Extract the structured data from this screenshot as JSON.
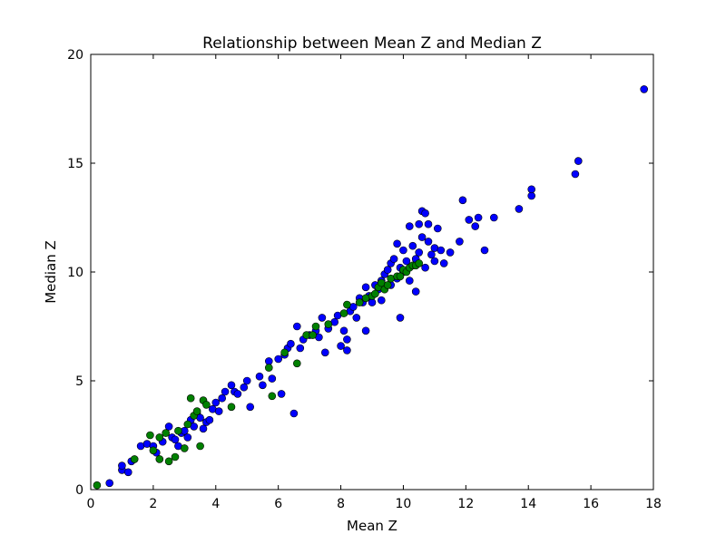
{
  "chart_data": {
    "type": "scatter",
    "title": "Relationship between Mean Z and Median Z",
    "xlabel": "Mean Z",
    "ylabel": "Median Z",
    "xlim": [
      0,
      18
    ],
    "ylim": [
      0,
      20
    ],
    "xticks": [
      0,
      2,
      4,
      6,
      8,
      10,
      12,
      14,
      16,
      18
    ],
    "yticks": [
      0,
      5,
      10,
      15,
      20
    ],
    "grid": false,
    "legend": "none",
    "series": [
      {
        "color": "#0000ff",
        "points": [
          [
            0.6,
            0.3
          ],
          [
            1.0,
            0.9
          ],
          [
            1.0,
            1.1
          ],
          [
            1.2,
            0.8
          ],
          [
            1.3,
            1.3
          ],
          [
            1.6,
            2.0
          ],
          [
            1.8,
            2.1
          ],
          [
            2.0,
            2.0
          ],
          [
            2.1,
            1.7
          ],
          [
            2.3,
            2.2
          ],
          [
            2.5,
            2.9
          ],
          [
            2.6,
            2.4
          ],
          [
            2.7,
            2.3
          ],
          [
            2.8,
            2.0
          ],
          [
            2.9,
            2.6
          ],
          [
            3.0,
            2.7
          ],
          [
            3.1,
            2.4
          ],
          [
            3.2,
            3.2
          ],
          [
            3.3,
            2.9
          ],
          [
            3.4,
            3.5
          ],
          [
            3.5,
            3.3
          ],
          [
            3.6,
            2.8
          ],
          [
            3.7,
            3.1
          ],
          [
            3.8,
            3.2
          ],
          [
            3.9,
            3.7
          ],
          [
            4.0,
            4.0
          ],
          [
            4.1,
            3.6
          ],
          [
            4.2,
            4.2
          ],
          [
            4.3,
            4.5
          ],
          [
            4.5,
            4.8
          ],
          [
            4.6,
            4.5
          ],
          [
            4.7,
            4.4
          ],
          [
            4.9,
            4.7
          ],
          [
            5.0,
            5.0
          ],
          [
            5.1,
            3.8
          ],
          [
            5.4,
            5.2
          ],
          [
            5.5,
            4.8
          ],
          [
            5.7,
            5.9
          ],
          [
            5.8,
            5.1
          ],
          [
            6.0,
            6.0
          ],
          [
            6.1,
            4.4
          ],
          [
            6.2,
            6.2
          ],
          [
            6.3,
            6.5
          ],
          [
            6.4,
            6.7
          ],
          [
            6.5,
            3.5
          ],
          [
            6.6,
            7.5
          ],
          [
            6.7,
            6.5
          ],
          [
            6.8,
            6.9
          ],
          [
            7.0,
            7.1
          ],
          [
            7.2,
            7.3
          ],
          [
            7.3,
            7.0
          ],
          [
            7.4,
            7.9
          ],
          [
            7.5,
            6.3
          ],
          [
            7.6,
            7.4
          ],
          [
            7.8,
            7.7
          ],
          [
            7.9,
            8.0
          ],
          [
            8.0,
            6.6
          ],
          [
            8.1,
            7.3
          ],
          [
            8.2,
            6.9
          ],
          [
            8.2,
            6.4
          ],
          [
            8.3,
            8.2
          ],
          [
            8.4,
            8.4
          ],
          [
            8.5,
            7.9
          ],
          [
            8.6,
            8.8
          ],
          [
            8.7,
            8.6
          ],
          [
            8.8,
            7.3
          ],
          [
            8.8,
            9.3
          ],
          [
            8.9,
            8.9
          ],
          [
            9.0,
            8.6
          ],
          [
            9.1,
            9.4
          ],
          [
            9.2,
            9.2
          ],
          [
            9.3,
            8.7
          ],
          [
            9.3,
            9.6
          ],
          [
            9.4,
            9.9
          ],
          [
            9.5,
            10.1
          ],
          [
            9.6,
            9.4
          ],
          [
            9.6,
            10.4
          ],
          [
            9.7,
            10.6
          ],
          [
            9.8,
            11.3
          ],
          [
            9.8,
            9.7
          ],
          [
            9.9,
            10.2
          ],
          [
            9.9,
            7.9
          ],
          [
            10.0,
            10.0
          ],
          [
            10.0,
            11.0
          ],
          [
            10.1,
            10.5
          ],
          [
            10.2,
            9.6
          ],
          [
            10.2,
            12.1
          ],
          [
            10.3,
            11.2
          ],
          [
            10.4,
            10.6
          ],
          [
            10.4,
            9.1
          ],
          [
            10.5,
            10.9
          ],
          [
            10.5,
            12.2
          ],
          [
            10.6,
            11.6
          ],
          [
            10.6,
            12.8
          ],
          [
            10.7,
            10.2
          ],
          [
            10.7,
            12.7
          ],
          [
            10.8,
            11.4
          ],
          [
            10.8,
            12.2
          ],
          [
            10.9,
            10.8
          ],
          [
            11.0,
            11.1
          ],
          [
            11.0,
            10.5
          ],
          [
            11.1,
            12.0
          ],
          [
            11.2,
            11.0
          ],
          [
            11.3,
            10.4
          ],
          [
            11.5,
            10.9
          ],
          [
            11.8,
            11.4
          ],
          [
            11.9,
            13.3
          ],
          [
            12.1,
            12.4
          ],
          [
            12.3,
            12.1
          ],
          [
            12.4,
            12.5
          ],
          [
            12.6,
            11.0
          ],
          [
            12.9,
            12.5
          ],
          [
            13.7,
            12.9
          ],
          [
            14.1,
            13.5
          ],
          [
            14.1,
            13.8
          ],
          [
            15.5,
            14.5
          ],
          [
            15.6,
            15.1
          ],
          [
            17.7,
            18.4
          ]
        ]
      },
      {
        "color": "#008000",
        "points": [
          [
            0.2,
            0.2
          ],
          [
            1.4,
            1.4
          ],
          [
            1.9,
            2.5
          ],
          [
            2.0,
            1.8
          ],
          [
            2.2,
            2.4
          ],
          [
            2.2,
            1.4
          ],
          [
            2.4,
            2.6
          ],
          [
            2.5,
            1.3
          ],
          [
            2.7,
            1.5
          ],
          [
            2.8,
            2.7
          ],
          [
            3.0,
            1.9
          ],
          [
            3.1,
            3.0
          ],
          [
            3.2,
            4.2
          ],
          [
            3.3,
            3.4
          ],
          [
            3.4,
            3.6
          ],
          [
            3.5,
            2.0
          ],
          [
            3.6,
            4.1
          ],
          [
            3.7,
            3.9
          ],
          [
            4.5,
            3.8
          ],
          [
            5.7,
            5.6
          ],
          [
            5.8,
            4.3
          ],
          [
            6.2,
            6.3
          ],
          [
            6.6,
            5.8
          ],
          [
            6.9,
            7.1
          ],
          [
            7.1,
            7.1
          ],
          [
            7.2,
            7.5
          ],
          [
            7.6,
            7.6
          ],
          [
            8.1,
            8.1
          ],
          [
            8.2,
            8.5
          ],
          [
            8.6,
            8.6
          ],
          [
            8.8,
            8.8
          ],
          [
            9.0,
            8.9
          ],
          [
            9.1,
            9.0
          ],
          [
            9.2,
            9.3
          ],
          [
            9.3,
            9.5
          ],
          [
            9.4,
            9.2
          ],
          [
            9.5,
            9.4
          ],
          [
            9.6,
            9.7
          ],
          [
            9.8,
            9.8
          ],
          [
            9.9,
            9.8
          ],
          [
            10.0,
            10.1
          ],
          [
            10.1,
            10.0
          ],
          [
            10.2,
            10.2
          ],
          [
            10.3,
            10.3
          ],
          [
            10.4,
            10.3
          ],
          [
            10.5,
            10.4
          ]
        ]
      }
    ]
  }
}
